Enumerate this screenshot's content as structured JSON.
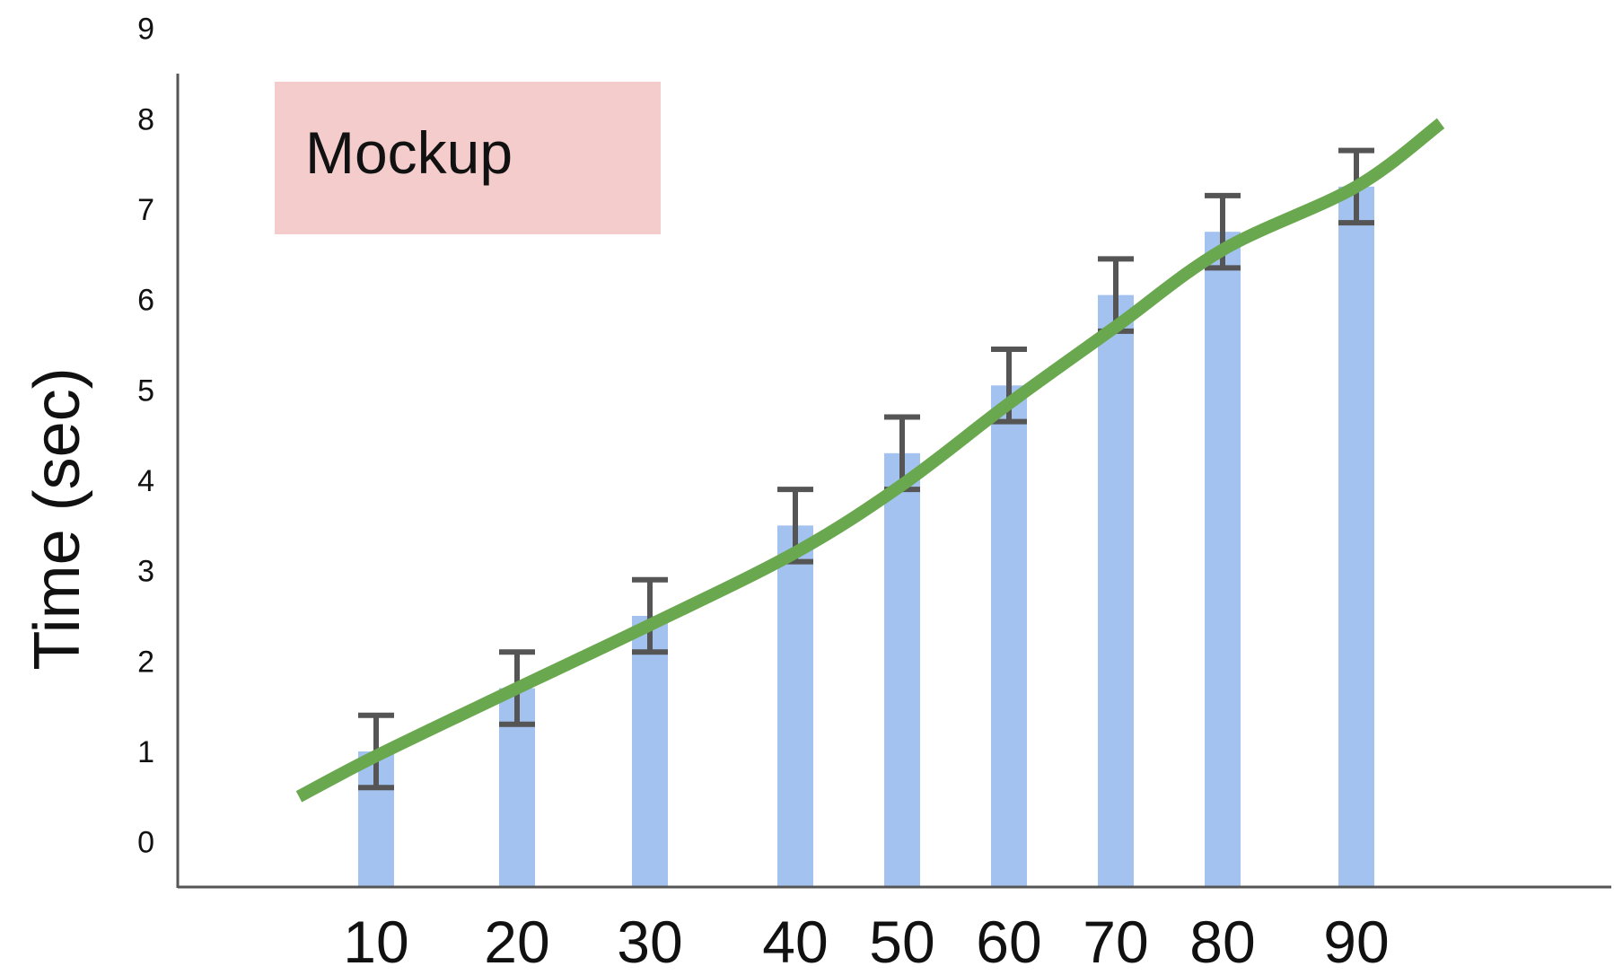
{
  "chart_data": {
    "type": "bar",
    "title": "",
    "xlabel": "",
    "ylabel": "Time (sec)",
    "x": [
      10,
      20,
      30,
      40,
      50,
      60,
      70,
      80,
      90
    ],
    "series": [
      {
        "type": "bar",
        "values": [
          1.5,
          2.2,
          3.0,
          4.0,
          4.8,
          5.55,
          6.55,
          7.25,
          7.75
        ],
        "error": [
          0.4,
          0.4,
          0.4,
          0.4,
          0.4,
          0.4,
          0.4,
          0.4,
          0.4
        ],
        "color": "#a4c2f0"
      },
      {
        "type": "line",
        "x": [
          3,
          10,
          20,
          30,
          40,
          50,
          60,
          70,
          80,
          90,
          95
        ],
        "values": [
          1.0,
          1.45,
          2.2,
          2.9,
          3.7,
          4.45,
          5.35,
          6.2,
          7.05,
          7.75,
          8.45
        ],
        "color": "#6aa84f"
      }
    ],
    "yticks": [
      0,
      1,
      2,
      3,
      4,
      5,
      6,
      7,
      8,
      9
    ],
    "ylim": [
      0,
      9
    ],
    "grid": false,
    "annotation": {
      "text": "Mockup",
      "color": "#f4cccc"
    },
    "error_bar_color": "#555555",
    "axis_color": "#555555"
  }
}
